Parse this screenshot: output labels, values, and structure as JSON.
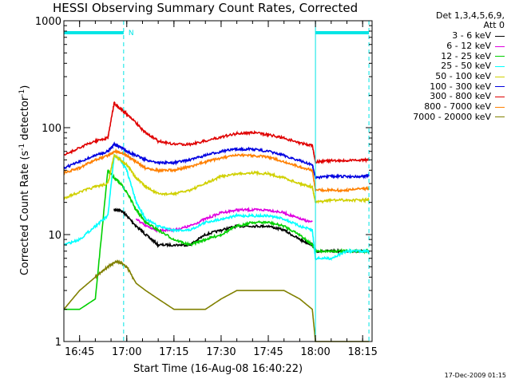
{
  "chart_data": {
    "type": "line",
    "title": "HESSI Observing Summary Count Rates, Corrected",
    "xlabel": "Start Time (16-Aug-08 16:40:22)",
    "ylabel": "Corrected Count Rate (s",
    "ylabel_sup1": "-1",
    "ylabel_mid": " detector",
    "ylabel_sup2": "-1",
    "ylabel_end": ")",
    "yscale": "log",
    "ylim": [
      1,
      1000
    ],
    "y_ticks": [
      "1",
      "10",
      "100",
      "1000"
    ],
    "xlim": [
      "16:40",
      "18:18"
    ],
    "x_ticks": [
      "16:45",
      "17:00",
      "17:15",
      "17:30",
      "17:45",
      "18:00",
      "18:15"
    ],
    "legend_header": [
      "Det 1,3,4,5,6,9,",
      "Att 0"
    ],
    "legend_position": "right, outside plot",
    "flags": {
      "color": "#00e5e5",
      "bars": [
        [
          "16:40",
          "16:59"
        ],
        [
          "18:00",
          "18:17"
        ]
      ],
      "lines": [
        "16:59",
        "18:00",
        "18:17"
      ],
      "label": "N"
    },
    "x": [
      "16:40",
      "16:45",
      "16:50",
      "16:54",
      "16:56",
      "16:58",
      "17:00",
      "17:03",
      "17:06",
      "17:10",
      "17:15",
      "17:20",
      "17:25",
      "17:30",
      "17:35",
      "17:40",
      "17:45",
      "17:50",
      "17:55",
      "17:59",
      "18:00",
      "18:05",
      "18:10",
      "18:15",
      "18:17"
    ],
    "series": [
      {
        "name": "3 - 6 keV",
        "color": "#000000",
        "values": [
          null,
          null,
          null,
          null,
          17,
          17,
          15,
          12,
          10,
          8,
          8,
          8,
          10,
          11,
          12,
          12,
          12,
          11,
          9,
          8,
          7,
          7,
          7,
          7,
          7
        ]
      },
      {
        "name": "6 - 12 keV",
        "color": "#e000e0",
        "values": [
          null,
          null,
          null,
          null,
          null,
          null,
          null,
          14,
          12,
          11,
          11,
          12,
          14,
          16,
          17,
          17,
          17,
          16,
          14,
          13,
          null,
          null,
          null,
          null,
          null
        ]
      },
      {
        "name": "12 - 25 keV",
        "color": "#00d000",
        "values": [
          2,
          2,
          2.5,
          40,
          34,
          30,
          25,
          17,
          13,
          11,
          9,
          8,
          9,
          10,
          12,
          13,
          13,
          12,
          10,
          8,
          7,
          7,
          7,
          7,
          7
        ]
      },
      {
        "name": "25 - 50 keV",
        "color": "#00ffff",
        "values": [
          8,
          9,
          12,
          15,
          55,
          50,
          40,
          20,
          14,
          12,
          11,
          11,
          13,
          14,
          15,
          15,
          15,
          14,
          12,
          11,
          6,
          6,
          7,
          7,
          7
        ]
      },
      {
        "name": "50 - 100 keV",
        "color": "#d0d000",
        "values": [
          22,
          25,
          28,
          30,
          55,
          50,
          45,
          34,
          28,
          24,
          24,
          26,
          30,
          35,
          37,
          38,
          37,
          34,
          30,
          28,
          20,
          21,
          21,
          21,
          21
        ]
      },
      {
        "name": "100 - 300 keV",
        "color": "#0000e0",
        "values": [
          42,
          48,
          55,
          60,
          70,
          66,
          60,
          55,
          50,
          47,
          47,
          50,
          55,
          60,
          63,
          63,
          60,
          55,
          49,
          45,
          34,
          35,
          35,
          35,
          36
        ]
      },
      {
        "name": "300 - 800 keV",
        "color": "#e00000",
        "values": [
          55,
          65,
          75,
          80,
          170,
          150,
          135,
          110,
          90,
          75,
          70,
          70,
          75,
          82,
          88,
          90,
          86,
          80,
          72,
          68,
          48,
          49,
          49,
          50,
          50
        ]
      },
      {
        "name": "800 - 7000 keV",
        "color": "#ff8000",
        "values": [
          38,
          42,
          50,
          55,
          60,
          58,
          55,
          48,
          42,
          40,
          40,
          43,
          48,
          52,
          55,
          55,
          53,
          48,
          43,
          40,
          26,
          26,
          26,
          27,
          27
        ]
      },
      {
        "name": "7000 - 20000 keV",
        "color": "#808000",
        "values": [
          2,
          3,
          4,
          5,
          5.5,
          5.5,
          5,
          3.5,
          3,
          2.5,
          2,
          2,
          2,
          2.5,
          3,
          3,
          3,
          3,
          2.5,
          2,
          1,
          1,
          1,
          1,
          1
        ]
      }
    ]
  },
  "footer": {
    "datestamp": "17-Dec-2009 01:15"
  }
}
